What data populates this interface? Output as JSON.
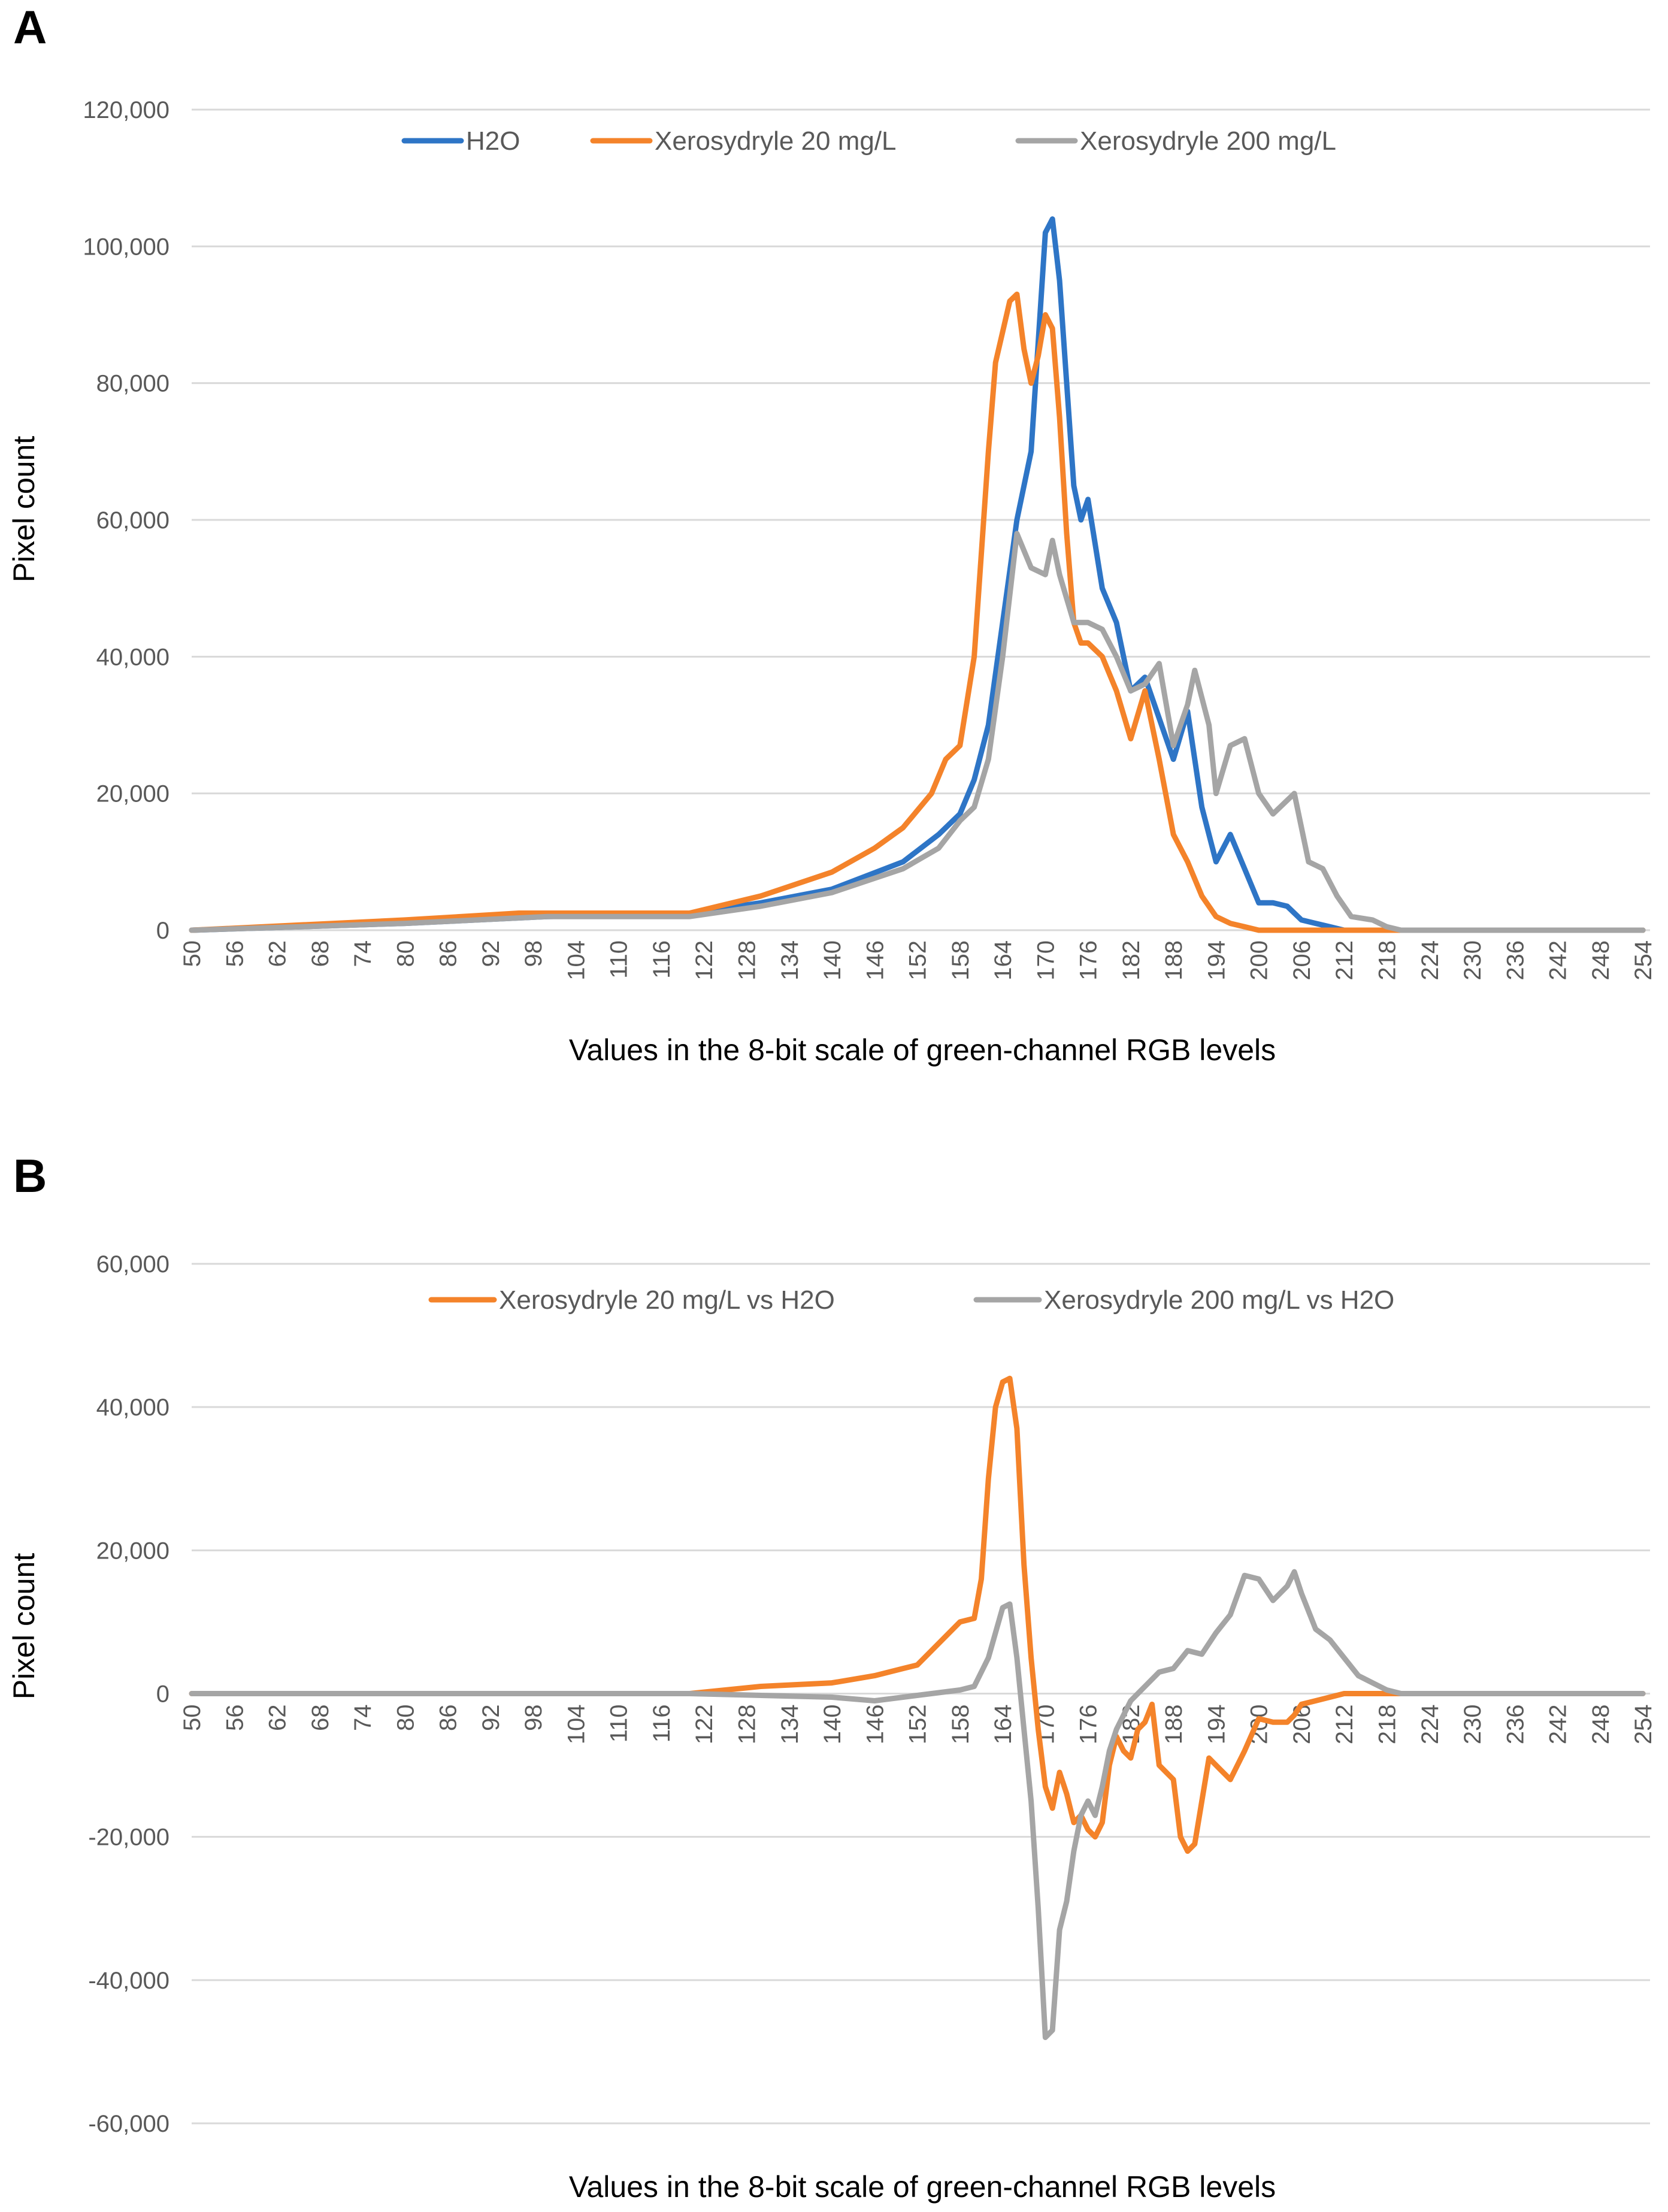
{
  "colors": {
    "h2o": "#2e75c6",
    "x20": "#f4832a",
    "x200": "#a5a5a5",
    "grid": "#d9d9d9",
    "tick": "#595959"
  },
  "chart_data": [
    {
      "panel": "A",
      "type": "line",
      "xlabel": "Values in the 8-bit scale of green-channel RGB levels",
      "ylabel": "Pixel count",
      "ylim": [
        0,
        120000
      ],
      "yticks": [
        0,
        20000,
        40000,
        60000,
        80000,
        100000,
        120000
      ],
      "ytick_labels": [
        "0",
        "20,000",
        "40,000",
        "60,000",
        "80,000",
        "100,000",
        "120,000"
      ],
      "xlim": [
        50,
        255
      ],
      "xticks": [
        50,
        56,
        62,
        68,
        74,
        80,
        86,
        92,
        98,
        104,
        110,
        116,
        122,
        128,
        134,
        140,
        146,
        152,
        158,
        164,
        170,
        176,
        182,
        188,
        194,
        200,
        206,
        212,
        218,
        224,
        230,
        236,
        242,
        248,
        254
      ],
      "legend_position": "top",
      "series": [
        {
          "name": "H2O",
          "color_key": "h2o",
          "x": [
            50,
            80,
            100,
            120,
            130,
            140,
            150,
            155,
            158,
            160,
            162,
            164,
            166,
            168,
            170,
            171,
            172,
            174,
            175,
            176,
            178,
            180,
            182,
            184,
            186,
            188,
            190,
            192,
            194,
            196,
            198,
            200,
            202,
            204,
            206,
            208,
            210,
            212,
            220,
            254
          ],
          "y": [
            0,
            1000,
            2000,
            2500,
            4000,
            6000,
            10000,
            14000,
            17000,
            22000,
            30000,
            45000,
            60000,
            70000,
            102000,
            104000,
            95000,
            65000,
            60000,
            63000,
            50000,
            45000,
            35000,
            37000,
            31000,
            25000,
            32000,
            18000,
            10000,
            14000,
            9000,
            4000,
            4000,
            3500,
            1500,
            1000,
            500,
            0,
            0,
            0
          ]
        },
        {
          "name": "Xerosydryle 20 mg/L",
          "color_key": "x20",
          "x": [
            50,
            80,
            96,
            100,
            120,
            130,
            140,
            146,
            150,
            154,
            156,
            158,
            160,
            162,
            163,
            165,
            166,
            167,
            168,
            169,
            170,
            171,
            172,
            173,
            174,
            175,
            176,
            178,
            180,
            182,
            184,
            186,
            188,
            190,
            192,
            194,
            196,
            198,
            200,
            210,
            254
          ],
          "y": [
            0,
            1500,
            2500,
            2500,
            2500,
            5000,
            8500,
            12000,
            15000,
            20000,
            25000,
            27000,
            40000,
            70000,
            83000,
            92000,
            93000,
            85000,
            80000,
            84000,
            90000,
            88000,
            75000,
            58000,
            45000,
            42000,
            42000,
            40000,
            35000,
            28000,
            35000,
            25000,
            14000,
            10000,
            5000,
            2000,
            1000,
            500,
            0,
            0,
            0
          ]
        },
        {
          "name": "Xerosydryle 200 mg/L",
          "color_key": "x200",
          "x": [
            50,
            80,
            100,
            120,
            130,
            140,
            150,
            155,
            158,
            160,
            162,
            164,
            166,
            168,
            170,
            171,
            172,
            174,
            176,
            178,
            180,
            182,
            184,
            186,
            188,
            190,
            191,
            193,
            194,
            196,
            198,
            200,
            202,
            204,
            205,
            207,
            209,
            211,
            213,
            216,
            218,
            220,
            254
          ],
          "y": [
            0,
            1000,
            2000,
            2000,
            3500,
            5500,
            9000,
            12000,
            16000,
            18000,
            25000,
            40000,
            58000,
            53000,
            52000,
            57000,
            52000,
            45000,
            45000,
            44000,
            40000,
            35000,
            36000,
            39000,
            27000,
            33000,
            38000,
            30000,
            20000,
            27000,
            28000,
            20000,
            17000,
            19000,
            20000,
            10000,
            9000,
            5000,
            2000,
            1500,
            500,
            0,
            0
          ]
        }
      ]
    },
    {
      "panel": "B",
      "type": "line",
      "xlabel": "Values in the 8-bit scale of green-channel RGB levels",
      "ylabel": "Pixel count",
      "ylim": [
        -60000,
        60000
      ],
      "yticks": [
        -60000,
        -40000,
        -20000,
        0,
        20000,
        40000,
        60000
      ],
      "ytick_labels": [
        "-60,000",
        "-40,000",
        "-20,000",
        "0",
        "20,000",
        "40,000",
        "60,000"
      ],
      "xlim": [
        50,
        255
      ],
      "xticks": [
        50,
        56,
        62,
        68,
        74,
        80,
        86,
        92,
        98,
        104,
        110,
        116,
        122,
        128,
        134,
        140,
        146,
        152,
        158,
        164,
        170,
        176,
        182,
        188,
        194,
        200,
        206,
        212,
        218,
        224,
        230,
        236,
        242,
        248,
        254
      ],
      "legend_position": "top",
      "series": [
        {
          "name": "Xerosydryle 20 mg/L vs H2O",
          "color_key": "x20",
          "x": [
            50,
            80,
            100,
            120,
            130,
            140,
            146,
            150,
            152,
            154,
            156,
            158,
            160,
            161,
            162,
            163,
            164,
            165,
            166,
            167,
            168,
            169,
            170,
            171,
            172,
            173,
            174,
            175,
            176,
            177,
            178,
            179,
            180,
            181,
            182,
            183,
            184,
            185,
            186,
            188,
            189,
            190,
            191,
            192,
            193,
            194,
            196,
            198,
            200,
            202,
            204,
            205,
            206,
            208,
            210,
            212,
            214,
            218,
            254
          ],
          "y": [
            0,
            0,
            0,
            0,
            1000,
            1500,
            2500,
            3500,
            4000,
            6000,
            8000,
            10000,
            10500,
            16000,
            30000,
            40000,
            43500,
            44000,
            37000,
            18000,
            5000,
            -5000,
            -13000,
            -16000,
            -11000,
            -14000,
            -18000,
            -17000,
            -19000,
            -20000,
            -18000,
            -10000,
            -6000,
            -8000,
            -9000,
            -5000,
            -4000,
            -1500,
            -10000,
            -12000,
            -20000,
            -22000,
            -21000,
            -15000,
            -9000,
            -10000,
            -12000,
            -8000,
            -3500,
            -4000,
            -4000,
            -3000,
            -1500,
            -1000,
            -500,
            0,
            0,
            0,
            0
          ]
        },
        {
          "name": "Xerosydryle 200 mg/L vs H2O",
          "color_key": "x200",
          "x": [
            50,
            80,
            100,
            120,
            140,
            146,
            150,
            154,
            158,
            160,
            162,
            164,
            165,
            166,
            167,
            168,
            169,
            170,
            171,
            172,
            173,
            174,
            175,
            176,
            177,
            178,
            179,
            180,
            181,
            182,
            184,
            186,
            188,
            190,
            192,
            194,
            196,
            198,
            200,
            202,
            204,
            205,
            206,
            208,
            210,
            212,
            214,
            216,
            218,
            220,
            254
          ],
          "y": [
            0,
            0,
            0,
            0,
            -500,
            -1000,
            -500,
            0,
            500,
            1000,
            5000,
            12000,
            12500,
            5000,
            -5000,
            -15000,
            -30000,
            -48000,
            -47000,
            -33000,
            -29000,
            -22000,
            -17000,
            -15000,
            -17000,
            -13000,
            -8000,
            -5000,
            -3000,
            -1000,
            1000,
            3000,
            3500,
            6000,
            5500,
            8500,
            11000,
            16500,
            16000,
            13000,
            15000,
            17000,
            14000,
            9000,
            7500,
            5000,
            2500,
            1500,
            500,
            0,
            0
          ]
        }
      ]
    }
  ]
}
